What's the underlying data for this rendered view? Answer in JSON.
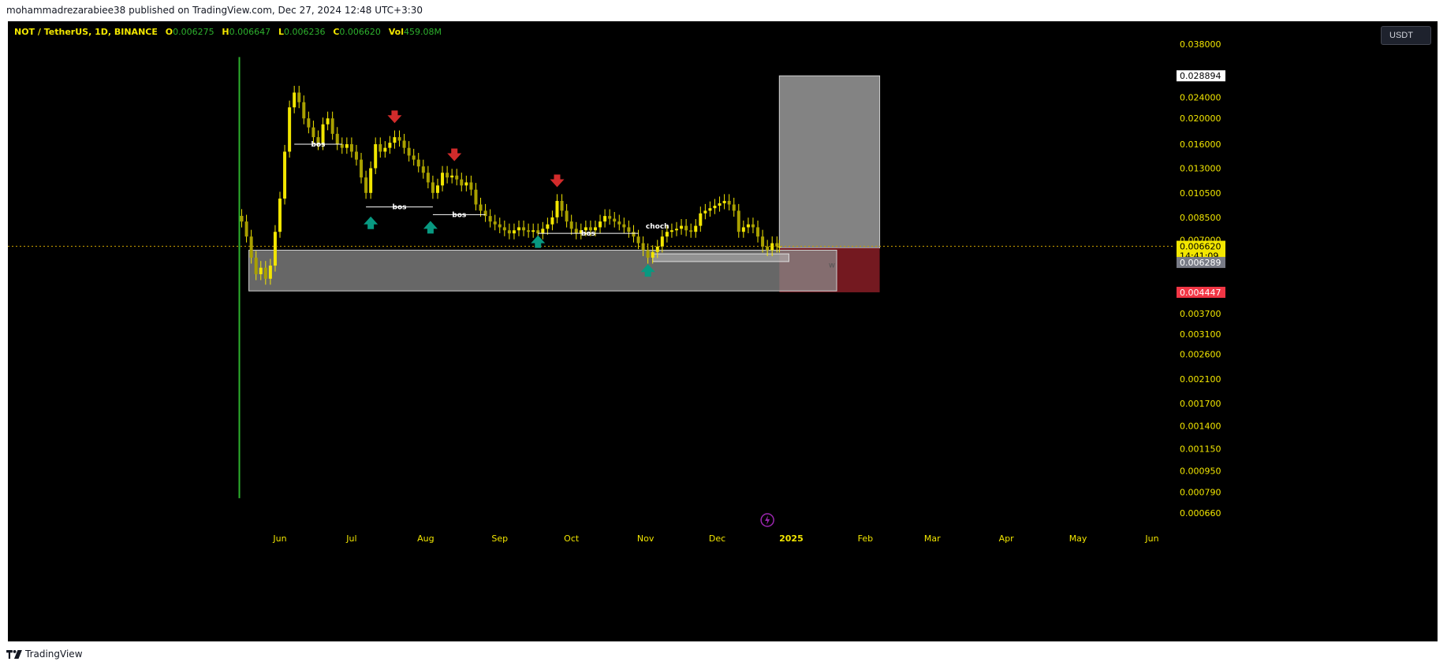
{
  "header": {
    "published_text": "mohammadrezarabiee38 published on TradingView.com, Dec 27, 2024 12:48 UTC+3:30"
  },
  "legend": {
    "symbol": "NOT / TetherUS, 1D, BINANCE",
    "open_label": "O",
    "open": "0.006275",
    "high_label": "H",
    "high": "0.006647",
    "low_label": "L",
    "low": "0.006236",
    "close_label": "C",
    "close": "0.006620",
    "vol_label": "Vol",
    "vol": "459.08M"
  },
  "currency_button": {
    "label": "USDT"
  },
  "footer": {
    "brand": "TradingView"
  },
  "colors": {
    "background": "#000000",
    "candle_up": "#f2e600",
    "candle_down": "#f2e600",
    "axis_text": "#f2e600",
    "arrow_up": "#089981",
    "arrow_down": "#d22b2b",
    "zone": "#8a8a8a",
    "target_zone": "#8a8a8a",
    "stop_zone": "#7a1a22",
    "current_price_tag": "#f2e600",
    "stop_tag": "#f23645"
  },
  "chart_data": {
    "type": "candlestick",
    "scale": "log",
    "ylim": [
      0.0006,
      0.04
    ],
    "price_ticks": [
      "0.038000",
      "0.024000",
      "0.020000",
      "0.016000",
      "0.013000",
      "0.010500",
      "0.008500",
      "0.007000",
      "0.003700",
      "0.003100",
      "0.002600",
      "0.002100",
      "0.001700",
      "0.001400",
      "0.001150",
      "0.000950",
      "0.000790",
      "0.000660"
    ],
    "price_tick_values": [
      0.038,
      0.024,
      0.02,
      0.016,
      0.013,
      0.0105,
      0.0085,
      0.007,
      0.0037,
      0.0031,
      0.0026,
      0.0021,
      0.0017,
      0.0014,
      0.00115,
      0.00095,
      0.00079,
      0.00066
    ],
    "time_ticks": [
      "Jun",
      "Jul",
      "Aug",
      "Sep",
      "Oct",
      "Nov",
      "Dec",
      "2025",
      "Feb",
      "Mar",
      "Apr",
      "May",
      "Jun"
    ],
    "time_tick_dates": [
      "2024-06-01",
      "2024-07-01",
      "2024-08-01",
      "2024-09-01",
      "2024-10-01",
      "2024-11-01",
      "2024-12-01",
      "2025-01-01",
      "2025-02-01",
      "2025-03-01",
      "2025-04-01",
      "2025-05-01",
      "2025-06-01"
    ],
    "date_range": [
      "2024-05-16",
      "2025-06-25"
    ],
    "price_labels": [
      {
        "text": "0.028894",
        "value": 0.028894,
        "style": "target"
      },
      {
        "text": "0.006620",
        "value": 0.00662,
        "style": "current"
      },
      {
        "text": "14:41:09",
        "value": 0.00662,
        "style": "countdown"
      },
      {
        "text": "0.006289",
        "value": 0.006289,
        "style": "gray"
      },
      {
        "text": "0.004447",
        "value": 0.004447,
        "style": "stop"
      }
    ],
    "current_price": 0.00662,
    "closes": [
      [
        "2024-05-16",
        0.0082
      ],
      [
        "2024-05-18",
        0.0072
      ],
      [
        "2024-05-20",
        0.006
      ],
      [
        "2024-05-22",
        0.0052
      ],
      [
        "2024-05-24",
        0.0055
      ],
      [
        "2024-05-26",
        0.005
      ],
      [
        "2024-05-28",
        0.0056
      ],
      [
        "2024-05-30",
        0.0075
      ],
      [
        "2024-06-01",
        0.01
      ],
      [
        "2024-06-03",
        0.015
      ],
      [
        "2024-06-05",
        0.022
      ],
      [
        "2024-06-07",
        0.025
      ],
      [
        "2024-06-09",
        0.023
      ],
      [
        "2024-06-11",
        0.02
      ],
      [
        "2024-06-13",
        0.0185
      ],
      [
        "2024-06-15",
        0.017
      ],
      [
        "2024-06-17",
        0.016
      ],
      [
        "2024-06-19",
        0.019
      ],
      [
        "2024-06-21",
        0.02
      ],
      [
        "2024-06-23",
        0.0175
      ],
      [
        "2024-06-25",
        0.016
      ],
      [
        "2024-06-27",
        0.0155
      ],
      [
        "2024-06-29",
        0.016
      ],
      [
        "2024-07-01",
        0.015
      ],
      [
        "2024-07-03",
        0.014
      ],
      [
        "2024-07-05",
        0.012
      ],
      [
        "2024-07-07",
        0.0105
      ],
      [
        "2024-07-09",
        0.013
      ],
      [
        "2024-07-11",
        0.016
      ],
      [
        "2024-07-13",
        0.015
      ],
      [
        "2024-07-15",
        0.0155
      ],
      [
        "2024-07-17",
        0.0162
      ],
      [
        "2024-07-19",
        0.017
      ],
      [
        "2024-07-21",
        0.0165
      ],
      [
        "2024-07-23",
        0.0155
      ],
      [
        "2024-07-25",
        0.0145
      ],
      [
        "2024-07-27",
        0.014
      ],
      [
        "2024-07-29",
        0.0132
      ],
      [
        "2024-07-31",
        0.0125
      ],
      [
        "2024-08-02",
        0.0115
      ],
      [
        "2024-08-04",
        0.0105
      ],
      [
        "2024-08-06",
        0.0112
      ],
      [
        "2024-08-08",
        0.0125
      ],
      [
        "2024-08-10",
        0.012
      ],
      [
        "2024-08-12",
        0.0122
      ],
      [
        "2024-08-14",
        0.0118
      ],
      [
        "2024-08-16",
        0.0112
      ],
      [
        "2024-08-18",
        0.0115
      ],
      [
        "2024-08-20",
        0.0108
      ],
      [
        "2024-08-22",
        0.0095
      ],
      [
        "2024-08-24",
        0.009
      ],
      [
        "2024-08-26",
        0.0086
      ],
      [
        "2024-08-28",
        0.0082
      ],
      [
        "2024-08-30",
        0.008
      ],
      [
        "2024-09-01",
        0.0078
      ],
      [
        "2024-09-03",
        0.0076
      ],
      [
        "2024-09-05",
        0.0074
      ],
      [
        "2024-09-07",
        0.0076
      ],
      [
        "2024-09-09",
        0.0078
      ],
      [
        "2024-09-11",
        0.0076
      ],
      [
        "2024-09-13",
        0.0075
      ],
      [
        "2024-09-15",
        0.0076
      ],
      [
        "2024-09-17",
        0.0074
      ],
      [
        "2024-09-19",
        0.0077
      ],
      [
        "2024-09-21",
        0.008
      ],
      [
        "2024-09-23",
        0.0085
      ],
      [
        "2024-09-25",
        0.0098
      ],
      [
        "2024-09-27",
        0.009
      ],
      [
        "2024-09-29",
        0.0082
      ],
      [
        "2024-10-01",
        0.0077
      ],
      [
        "2024-10-03",
        0.0074
      ],
      [
        "2024-10-05",
        0.0076
      ],
      [
        "2024-10-07",
        0.0078
      ],
      [
        "2024-10-09",
        0.0076
      ],
      [
        "2024-10-11",
        0.0078
      ],
      [
        "2024-10-13",
        0.0082
      ],
      [
        "2024-10-15",
        0.0086
      ],
      [
        "2024-10-17",
        0.0084
      ],
      [
        "2024-10-19",
        0.0082
      ],
      [
        "2024-10-21",
        0.008
      ],
      [
        "2024-10-23",
        0.0078
      ],
      [
        "2024-10-25",
        0.0075
      ],
      [
        "2024-10-27",
        0.0072
      ],
      [
        "2024-10-29",
        0.0068
      ],
      [
        "2024-10-31",
        0.0064
      ],
      [
        "2024-11-02",
        0.006
      ],
      [
        "2024-11-04",
        0.0063
      ],
      [
        "2024-11-06",
        0.0066
      ],
      [
        "2024-11-08",
        0.0072
      ],
      [
        "2024-11-10",
        0.0075
      ],
      [
        "2024-11-12",
        0.0076
      ],
      [
        "2024-11-14",
        0.0077
      ],
      [
        "2024-11-16",
        0.0079
      ],
      [
        "2024-11-18",
        0.0076
      ],
      [
        "2024-11-20",
        0.0075
      ],
      [
        "2024-11-22",
        0.0079
      ],
      [
        "2024-11-24",
        0.0088
      ],
      [
        "2024-11-26",
        0.009
      ],
      [
        "2024-11-28",
        0.0092
      ],
      [
        "2024-11-30",
        0.0094
      ],
      [
        "2024-12-02",
        0.0096
      ],
      [
        "2024-12-04",
        0.0098
      ],
      [
        "2024-12-06",
        0.0095
      ],
      [
        "2024-12-08",
        0.009
      ],
      [
        "2024-12-10",
        0.0075
      ],
      [
        "2024-12-12",
        0.0078
      ],
      [
        "2024-12-14",
        0.008
      ],
      [
        "2024-12-16",
        0.0078
      ],
      [
        "2024-12-18",
        0.0072
      ],
      [
        "2024-12-20",
        0.0066
      ],
      [
        "2024-12-22",
        0.0064
      ],
      [
        "2024-12-24",
        0.0068
      ],
      [
        "2024-12-26",
        0.0066
      ],
      [
        "2024-12-27",
        0.0066
      ]
    ],
    "annotations": {
      "bos_labels": [
        {
          "text": "bos",
          "date_start": "2024-06-07",
          "date_end": "2024-06-27",
          "value": 0.016
        },
        {
          "text": "bos",
          "date_start": "2024-07-07",
          "date_end": "2024-08-04",
          "value": 0.0093
        },
        {
          "text": "bos",
          "date_start": "2024-08-04",
          "date_end": "2024-08-26",
          "value": 0.0087
        },
        {
          "text": "bos",
          "date_start": "2024-09-17",
          "date_end": "2024-10-29",
          "value": 0.0074
        }
      ],
      "choch_label": {
        "text": "choch",
        "date": "2024-11-06",
        "value": 0.0074
      },
      "w_label": {
        "text": "w",
        "date": "2025-01-18",
        "value": 0.0055
      },
      "down_arrows": [
        {
          "date": "2024-07-19",
          "value": 0.02
        },
        {
          "date": "2024-08-13",
          "value": 0.0144
        },
        {
          "date": "2024-09-25",
          "value": 0.0115
        }
      ],
      "up_arrows": [
        {
          "date": "2024-07-09",
          "value": 0.008
        },
        {
          "date": "2024-08-03",
          "value": 0.0077
        },
        {
          "date": "2024-09-17",
          "value": 0.0068
        },
        {
          "date": "2024-11-02",
          "value": 0.0053
        }
      ],
      "demand_zone": {
        "date_start": "2024-05-19",
        "date_end": "2025-01-20",
        "top": 0.0064,
        "bottom": 0.0045
      },
      "small_zone": {
        "date_start": "2024-11-04",
        "date_end": "2024-12-31",
        "top": 0.0062,
        "bottom": 0.0058
      },
      "target_zone": {
        "date_start": "2024-12-27",
        "date_end": "2025-02-07",
        "top": 0.028894,
        "bottom": 0.00652
      },
      "stop_zone": {
        "date_start": "2024-12-27",
        "date_end": "2025-02-07",
        "top": 0.00652,
        "bottom": 0.004447
      }
    }
  }
}
